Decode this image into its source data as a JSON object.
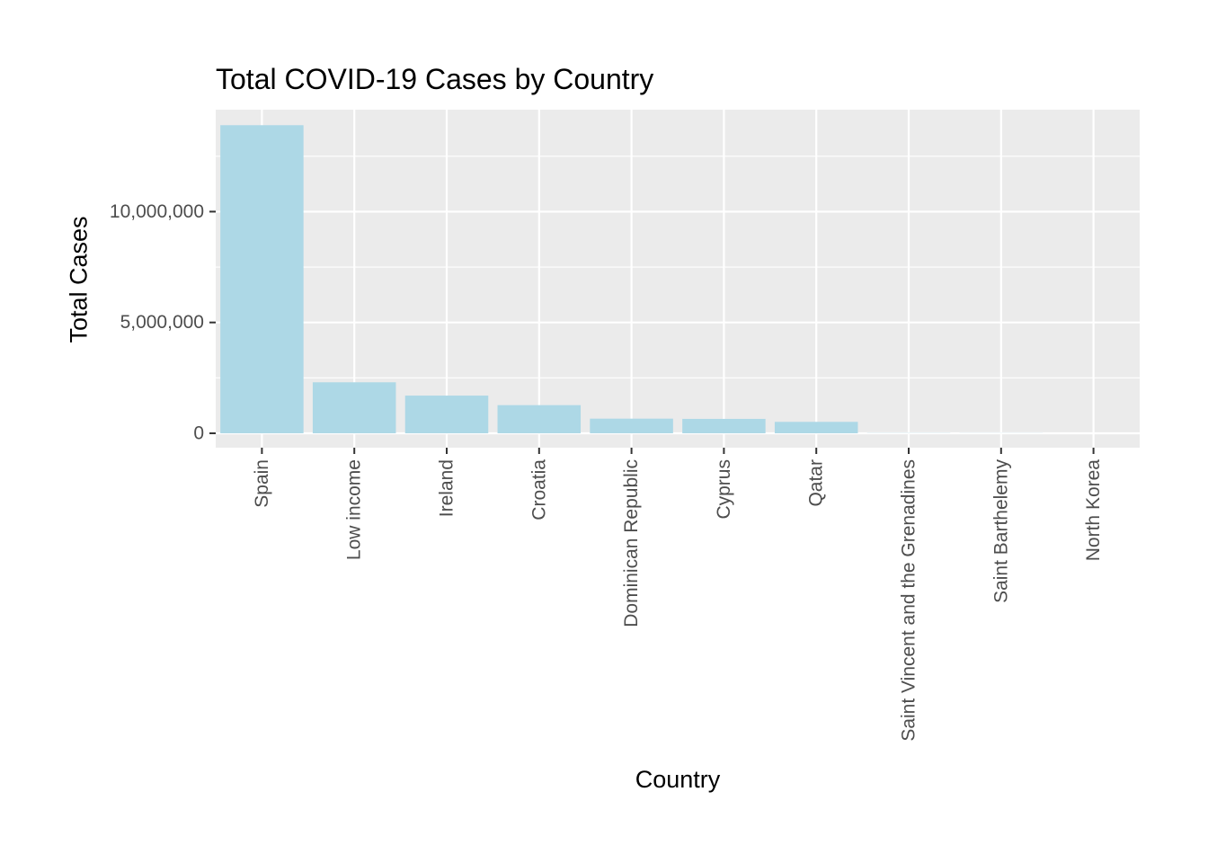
{
  "chart_data": {
    "type": "bar",
    "title": "Total COVID-19 Cases by Country",
    "xlabel": "Country",
    "ylabel": "Total Cases",
    "categories": [
      "Spain",
      "Low income",
      "Ireland",
      "Croatia",
      "Dominican Republic",
      "Cyprus",
      "Qatar",
      "Saint Vincent and the Grenadines",
      "Saint Barthelemy",
      "North Korea"
    ],
    "values": [
      13900000,
      2300000,
      1700000,
      1270000,
      660000,
      650000,
      515000,
      9600,
      5500,
      1
    ],
    "ylim": [
      -650000,
      14600000
    ],
    "yticks": [
      0,
      5000000,
      10000000
    ],
    "ytick_labels": [
      "0",
      "5,000,000",
      "10,000,000"
    ],
    "grid": true,
    "legend": "none",
    "colors": {
      "bar": "#add8e6",
      "panel": "#ebebeb",
      "grid": "#ffffff",
      "tick_text": "#4d4d4d",
      "tick_mark": "#333333"
    }
  }
}
